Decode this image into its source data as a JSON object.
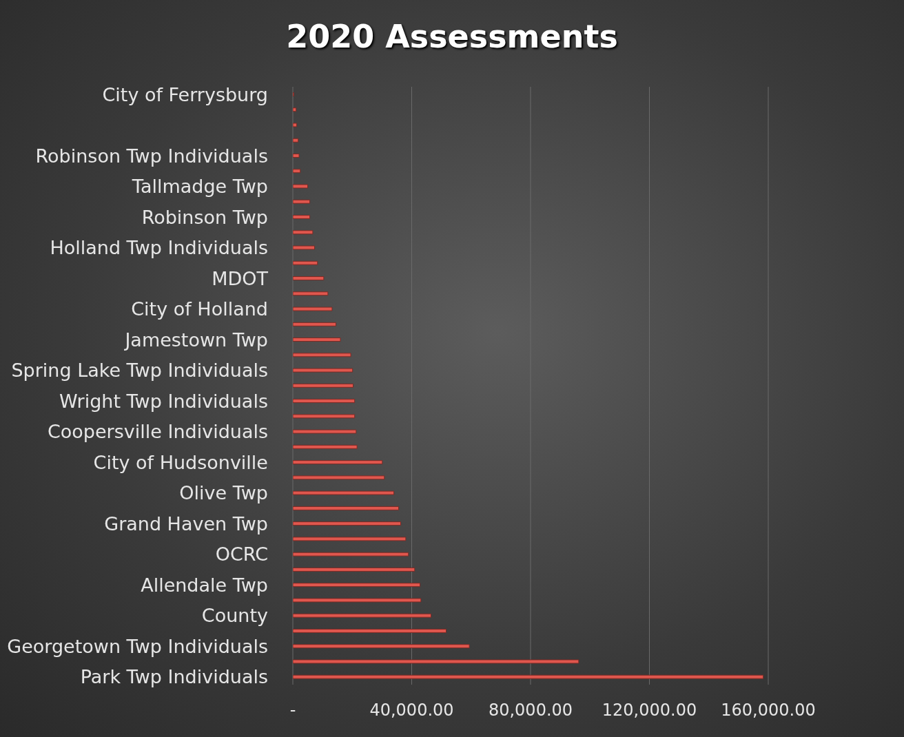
{
  "chart_data": {
    "type": "bar",
    "orientation": "horizontal",
    "title": "2020 Assessments",
    "categories": [
      "City of Ferrysburg",
      null,
      null,
      null,
      "Robinson Twp Individuals",
      null,
      "Tallmadge Twp",
      null,
      "Robinson Twp",
      null,
      "Holland Twp Individuals",
      null,
      "MDOT",
      null,
      "City of Holland",
      null,
      "Jamestown Twp",
      null,
      "Spring Lake Twp Individuals",
      null,
      "Wright Twp Individuals",
      null,
      "Coopersville Individuals",
      null,
      "City of Hudsonville",
      null,
      "Olive Twp",
      null,
      "Grand Haven Twp",
      null,
      "OCRC",
      null,
      "Allendale Twp",
      null,
      "County",
      null,
      "Georgetown Twp Individuals",
      null,
      "Park Twp Individuals"
    ],
    "values": [
      300,
      1100,
      1300,
      1800,
      2100,
      2500,
      5000,
      5700,
      5700,
      6700,
      7300,
      8300,
      10400,
      11800,
      13200,
      14500,
      16000,
      19500,
      20100,
      20300,
      20800,
      20800,
      21300,
      21600,
      30100,
      30800,
      34000,
      35600,
      36300,
      38000,
      38900,
      41000,
      42800,
      43100,
      46500,
      51600,
      59400,
      96200,
      158300
    ],
    "color": "#e0574e",
    "xlim": [
      0,
      160000
    ],
    "xticks": [
      {
        "value": 0,
        "label": "-"
      },
      {
        "value": 40000,
        "label": "40,000.00"
      },
      {
        "value": 80000,
        "label": "80,000.00"
      },
      {
        "value": 120000,
        "label": "120,000.00"
      },
      {
        "value": 160000,
        "label": "160,000.00"
      }
    ],
    "grid": "x"
  }
}
